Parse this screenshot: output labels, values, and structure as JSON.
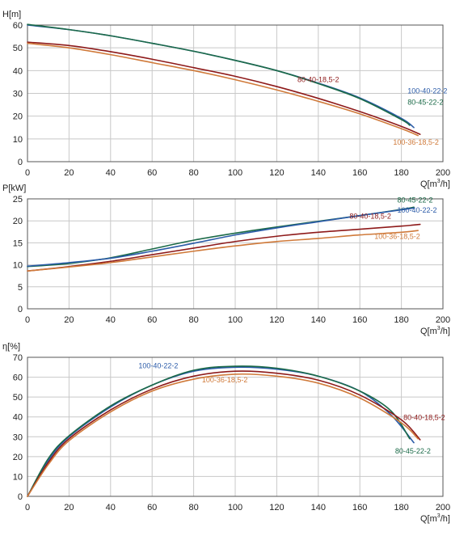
{
  "colors": {
    "100-40-22-2": "#2b5ba8",
    "80-45-22-2": "#1b6a48",
    "80-40-18,5-2": "#8e1a1a",
    "100-36-18,5-2": "#d07a3a"
  },
  "x_axis": {
    "ticks": [
      "0",
      "20",
      "40",
      "60",
      "80",
      "100",
      "120",
      "140",
      "160",
      "180",
      "200"
    ],
    "label_pre": "Q[m",
    "label_sup": "3",
    "label_post": "/h]"
  },
  "chart_data": [
    {
      "type": "line",
      "ylabel": "H[m]",
      "xlim": [
        0,
        200
      ],
      "ylim": [
        0,
        60
      ],
      "yticks": [
        "0",
        "10",
        "20",
        "30",
        "40",
        "50",
        "60"
      ],
      "grid": true,
      "series": [
        {
          "name": "100-40-22-2",
          "x": [
            0,
            20,
            40,
            60,
            80,
            100,
            120,
            140,
            160,
            180,
            186
          ],
          "y": [
            60,
            58,
            55.3,
            52,
            48.5,
            44.5,
            40,
            34.5,
            28,
            19,
            15
          ]
        },
        {
          "name": "80-45-22-2",
          "x": [
            0,
            20,
            40,
            60,
            80,
            100,
            120,
            140,
            160,
            180,
            184
          ],
          "y": [
            60.3,
            58,
            55.3,
            52,
            48.5,
            44.5,
            40,
            34.3,
            27.7,
            18.5,
            16
          ]
        },
        {
          "name": "80-40-18,5-2",
          "x": [
            0,
            20,
            40,
            60,
            80,
            100,
            120,
            140,
            160,
            180,
            189
          ],
          "y": [
            52.5,
            51,
            48.3,
            45,
            41.3,
            37.5,
            33,
            27.8,
            22,
            15.5,
            12
          ]
        },
        {
          "name": "100-36-18,5-2",
          "x": [
            0,
            20,
            40,
            60,
            80,
            100,
            120,
            140,
            160,
            180,
            188
          ],
          "y": [
            52,
            50,
            47,
            43.5,
            40,
            36,
            31.5,
            26.5,
            21,
            14.5,
            11.5
          ]
        }
      ]
    },
    {
      "type": "line",
      "ylabel": "P[kW]",
      "xlim": [
        0,
        200
      ],
      "ylim": [
        0,
        25
      ],
      "yticks": [
        "0",
        "5",
        "10",
        "15",
        "20",
        "25"
      ],
      "grid": true,
      "series": [
        {
          "name": "80-45-22-2",
          "x": [
            0,
            20,
            40,
            60,
            80,
            100,
            120,
            140,
            160,
            180,
            186
          ],
          "y": [
            9.6,
            10.3,
            11.6,
            13.6,
            15.6,
            17.2,
            18.6,
            19.9,
            21.2,
            22.6,
            23.1
          ]
        },
        {
          "name": "100-40-22-2",
          "x": [
            0,
            20,
            40,
            60,
            80,
            100,
            120,
            140,
            160,
            180,
            186
          ],
          "y": [
            9.7,
            10.5,
            11.5,
            13.1,
            14.9,
            16.8,
            18.4,
            19.8,
            21.2,
            22.5,
            22.9
          ]
        },
        {
          "name": "80-40-18,5-2",
          "x": [
            0,
            20,
            40,
            60,
            80,
            100,
            120,
            140,
            160,
            180,
            189
          ],
          "y": [
            8.6,
            9.6,
            10.8,
            12.3,
            13.8,
            15.3,
            16.5,
            17.4,
            18.1,
            18.8,
            19.2
          ]
        },
        {
          "name": "100-36-18,5-2",
          "x": [
            0,
            20,
            40,
            60,
            80,
            100,
            120,
            140,
            160,
            180,
            188
          ],
          "y": [
            8.6,
            9.5,
            10.5,
            11.8,
            13.1,
            14.3,
            15.3,
            16.0,
            16.8,
            17.4,
            17.8
          ]
        }
      ]
    },
    {
      "type": "line",
      "ylabel": "η[%]",
      "xlim": [
        0,
        200
      ],
      "ylim": [
        0,
        70
      ],
      "yticks": [
        "0",
        "10",
        "20",
        "30",
        "40",
        "50",
        "60",
        "70"
      ],
      "grid": true,
      "series": [
        {
          "name": "100-40-22-2",
          "x": [
            0,
            10,
            20,
            40,
            60,
            80,
            100,
            120,
            140,
            160,
            175,
            186
          ],
          "y": [
            0,
            18,
            30,
            45,
            56,
            63,
            65,
            64,
            60.5,
            53,
            41,
            27
          ]
        },
        {
          "name": "80-45-22-2",
          "x": [
            0,
            10,
            20,
            40,
            60,
            80,
            100,
            120,
            140,
            160,
            175,
            184
          ],
          "y": [
            0,
            19,
            30.5,
            45.5,
            56,
            63.5,
            65.5,
            64.5,
            60.5,
            53,
            43,
            29
          ]
        },
        {
          "name": "80-40-18,5-2",
          "x": [
            0,
            10,
            20,
            40,
            60,
            80,
            100,
            120,
            140,
            160,
            180,
            189
          ],
          "y": [
            0,
            17,
            29,
            43.5,
            54,
            60.5,
            63,
            62,
            58.5,
            51,
            38.5,
            28.5
          ]
        },
        {
          "name": "100-36-18,5-2",
          "x": [
            0,
            10,
            20,
            40,
            60,
            80,
            100,
            120,
            140,
            160,
            180,
            188
          ],
          "y": [
            0,
            16,
            28,
            42.5,
            53,
            59,
            61.5,
            60.5,
            57,
            49.5,
            37,
            29
          ]
        }
      ]
    }
  ],
  "series_labels": [
    {
      "chart": 0,
      "name": "80-40-18,5-2",
      "text": "80-40-18,5-2"
    },
    {
      "chart": 0,
      "name": "100-40-22-2",
      "text": "100-40-22-2"
    },
    {
      "chart": 0,
      "name": "80-45-22-2",
      "text": "80-45-22-2"
    },
    {
      "chart": 0,
      "name": "100-36-18,5-2",
      "text": "100-36-18,5-2"
    },
    {
      "chart": 1,
      "name": "80-45-22-2",
      "text": "80-45-22-2"
    },
    {
      "chart": 1,
      "name": "100-40-22-2",
      "text": "100-40-22-2"
    },
    {
      "chart": 1,
      "name": "80-40-18,5-2",
      "text": "80-40-18,5-2"
    },
    {
      "chart": 1,
      "name": "100-36-18,5-2",
      "text": "100-36-18,5-2"
    },
    {
      "chart": 2,
      "name": "100-40-22-2",
      "text": "100-40-22-2"
    },
    {
      "chart": 2,
      "name": "100-36-18,5-2",
      "text": "100-36-18,5-2"
    },
    {
      "chart": 2,
      "name": "80-40-18,5-2",
      "text": "80-40-18,5-2"
    },
    {
      "chart": 2,
      "name": "80-45-22-2",
      "text": "80-45-22-2"
    }
  ]
}
